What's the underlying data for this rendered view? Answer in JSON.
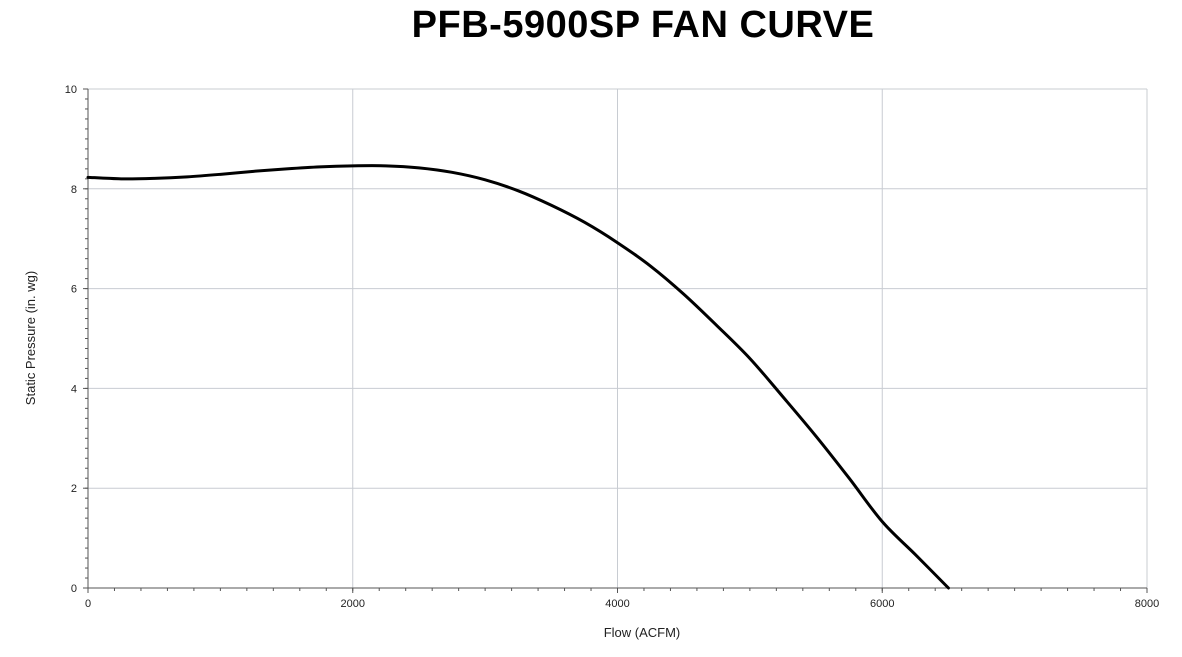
{
  "chart_data": {
    "type": "line",
    "title": "PFB-5900SP FAN CURVE",
    "xlabel": "Flow (ACFM)",
    "ylabel": "Static Pressure (in. wg)",
    "xlim": [
      0,
      8000
    ],
    "ylim": [
      0,
      10
    ],
    "xticks": [
      0,
      2000,
      4000,
      6000,
      8000
    ],
    "yticks": [
      0,
      2,
      4,
      6,
      8,
      10
    ],
    "grid": true,
    "series": [
      {
        "color": "#000000",
        "x": [
          0,
          250,
          500,
          750,
          1000,
          1250,
          1500,
          1750,
          2000,
          2250,
          2500,
          2750,
          3000,
          3250,
          3500,
          3750,
          4000,
          4250,
          4500,
          4750,
          5000,
          5250,
          5500,
          5750,
          6000,
          6250,
          6500
        ],
        "y": [
          8.23,
          8.2,
          8.21,
          8.24,
          8.29,
          8.35,
          8.4,
          8.44,
          8.46,
          8.46,
          8.42,
          8.33,
          8.18,
          7.96,
          7.67,
          7.33,
          6.92,
          6.45,
          5.89,
          5.26,
          4.6,
          3.83,
          3.04,
          2.2,
          1.33,
          0.67,
          0.0
        ]
      }
    ]
  }
}
